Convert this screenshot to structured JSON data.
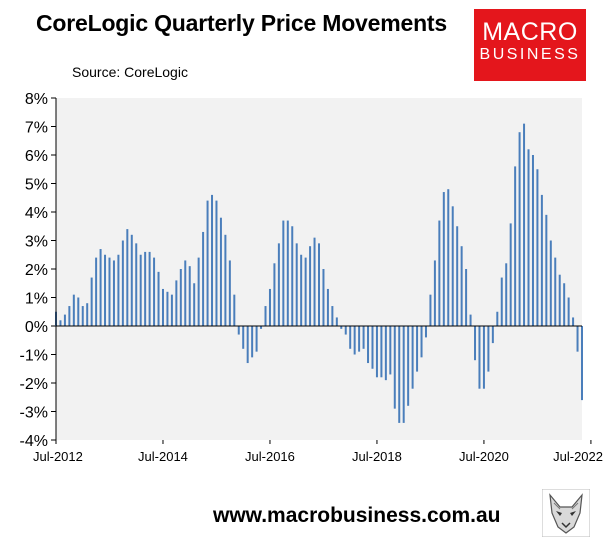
{
  "header": {
    "title": "CoreLogic Quarterly Price Movements",
    "source": "Source: CoreLogic"
  },
  "logo": {
    "line1": "MACRO",
    "line2": "BUSINESS",
    "color": "#e4161c"
  },
  "footer": {
    "url": "www.macrobusiness.com.au",
    "logo_icon": "wolf-icon"
  },
  "colors": {
    "bar": "#4a7ebb",
    "plot_bg": "#f2f2f2",
    "axis": "#000000"
  },
  "chart_data": {
    "type": "bar",
    "title": "CoreLogic Quarterly Price Movements",
    "xlabel": "",
    "ylabel": "",
    "ylim": [
      -4,
      8
    ],
    "yticks": [
      -4,
      -3,
      -2,
      -1,
      0,
      1,
      2,
      3,
      4,
      5,
      6,
      7,
      8
    ],
    "ytick_format": "percent",
    "xtick_labels": [
      "Jul-2012",
      "Jul-2014",
      "Jul-2016",
      "Jul-2018",
      "Jul-2020",
      "Jul-2022"
    ],
    "grid": false,
    "frequency": "monthly",
    "start": "Jul-2012",
    "end": "Jul-2022",
    "series": [
      {
        "values": [
          0.5,
          0.2,
          0.4,
          0.7,
          1.1,
          1.0,
          0.7,
          0.8,
          1.7,
          2.4,
          2.7,
          2.5,
          2.4,
          2.3,
          2.5,
          3.0,
          3.4,
          3.2,
          2.9,
          2.5,
          2.6,
          2.6,
          2.4,
          1.9,
          1.3,
          1.2,
          1.1,
          1.6,
          2.0,
          2.3,
          2.1,
          1.5,
          2.4,
          3.3,
          4.4,
          4.6,
          4.4,
          3.8,
          3.2,
          2.3,
          1.1,
          -0.3,
          -0.8,
          -1.3,
          -1.1,
          -0.9,
          -0.1,
          0.7,
          1.3,
          2.2,
          2.9,
          3.7,
          3.7,
          3.5,
          2.9,
          2.5,
          2.4,
          2.8,
          3.1,
          2.9,
          2.0,
          1.3,
          0.7,
          0.3,
          -0.1,
          -0.3,
          -0.8,
          -1.0,
          -0.9,
          -0.8,
          -1.3,
          -1.5,
          -1.8,
          -1.8,
          -1.9,
          -1.7,
          -2.9,
          -3.4,
          -3.4,
          -2.8,
          -2.2,
          -1.6,
          -1.1,
          -0.4,
          1.1,
          2.3,
          3.7,
          4.7,
          4.8,
          4.2,
          3.5,
          2.8,
          2.0,
          0.4,
          -1.2,
          -2.2,
          -2.2,
          -1.6,
          -0.6,
          0.5,
          1.7,
          2.2,
          3.6,
          5.6,
          6.8,
          7.1,
          6.2,
          6.0,
          5.5,
          4.6,
          3.9,
          3.0,
          2.4,
          1.8,
          1.5,
          1.0,
          0.3,
          -0.9,
          -2.6
        ]
      }
    ]
  }
}
